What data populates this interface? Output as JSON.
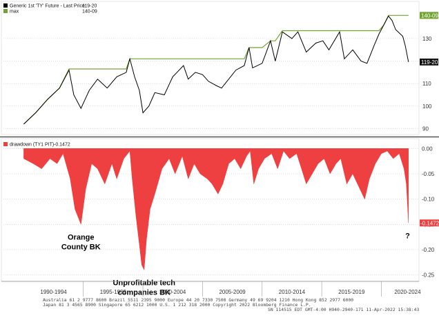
{
  "chart_data": [
    {
      "type": "line",
      "legend_placement": "top-left",
      "series": [
        {
          "name": "Generic 1st 'TY' Future - Last Price",
          "legend_value": "119-20",
          "color": "#000000"
        },
        {
          "name": "max",
          "legend_value": "140-09",
          "color": "#6fa32e"
        }
      ],
      "x": [
        1990.0,
        1991.0,
        1992.0,
        1993.0,
        1993.8,
        1994.2,
        1994.8,
        1995.5,
        1996.2,
        1997.0,
        1997.8,
        1998.6,
        1998.9,
        1999.3,
        1999.7,
        2000.0,
        2000.5,
        2001.0,
        2001.8,
        2002.5,
        2003.4,
        2003.8,
        2004.4,
        2005.0,
        2005.5,
        2006.2,
        2006.6,
        2007.2,
        2007.8,
        2008.5,
        2008.9,
        2009.2,
        2010.0,
        2010.7,
        2011.1,
        2011.7,
        2012.5,
        2013.0,
        2013.7,
        2014.5,
        2015.1,
        2015.6,
        2016.5,
        2016.9,
        2017.6,
        2018.3,
        2018.8,
        2019.4,
        2019.8,
        2020.2,
        2020.6,
        2020.9,
        2021.2,
        2021.8,
        2022.0,
        2022.28
      ],
      "ylim": [
        88,
        145
      ],
      "y_ticks": [
        90,
        100,
        110,
        120,
        130
      ],
      "price": [
        92,
        97,
        103,
        108,
        116,
        105,
        99,
        107,
        112,
        108,
        113,
        115,
        121,
        113,
        107,
        97,
        100,
        106,
        105,
        113,
        118,
        112,
        115,
        114,
        111,
        109,
        108,
        112,
        116,
        118,
        126,
        117,
        119,
        129,
        120,
        133,
        130,
        133,
        124,
        128,
        129,
        125,
        133,
        121,
        125,
        120,
        119,
        127,
        132,
        136,
        140,
        138,
        134,
        131,
        127,
        119.6
      ],
      "max": [
        92,
        97,
        103,
        108,
        116.5,
        116.5,
        116.5,
        116.5,
        116.5,
        116.5,
        116.5,
        116.5,
        121,
        121,
        121,
        121,
        121,
        121,
        121,
        121,
        121,
        121,
        121,
        121,
        121,
        121,
        121,
        121,
        121,
        121,
        126,
        126,
        126,
        129,
        129,
        133.5,
        133.5,
        133.5,
        133.5,
        133.5,
        133.5,
        133.5,
        133.5,
        133.5,
        133.5,
        133.5,
        133.5,
        133.5,
        133.5,
        136,
        140.3,
        140.3,
        140.3,
        140.3,
        140.3,
        140.3
      ],
      "current_value_label": "119-20",
      "max_value_label": "140-09"
    },
    {
      "type": "area",
      "legend_placement": "top-left",
      "series": [
        {
          "name": "drawdown (TY1 PIT)",
          "legend_value": "-0.1472",
          "color": "#ee4040"
        }
      ],
      "x": [
        1990.0,
        1990.8,
        1991.5,
        1992.2,
        1992.8,
        1993.3,
        1993.9,
        1994.3,
        1994.8,
        1995.2,
        1995.7,
        1996.2,
        1996.8,
        1997.4,
        1997.8,
        1998.4,
        1998.9,
        1999.1,
        1999.4,
        1999.7,
        1999.9,
        2000.1,
        2000.3,
        2000.6,
        2001.0,
        2001.6,
        2002.2,
        2002.7,
        2003.3,
        2003.8,
        2004.3,
        2004.8,
        2005.4,
        2005.8,
        2006.3,
        2006.7,
        2007.2,
        2007.7,
        2008.2,
        2008.7,
        2009.0,
        2009.3,
        2009.7,
        2010.2,
        2010.8,
        2011.3,
        2011.8,
        2012.3,
        2012.9,
        2013.3,
        2013.7,
        2014.2,
        2014.7,
        2015.2,
        2015.7,
        2016.2,
        2016.6,
        2017.1,
        2017.6,
        2018.2,
        2018.6,
        2019.0,
        2019.5,
        2020.0,
        2020.5,
        2021.0,
        2021.5,
        2021.9,
        2022.1,
        2022.28
      ],
      "ylim": [
        -0.26,
        0.01
      ],
      "y_ticks": [
        0.0,
        -0.05,
        -0.1,
        -0.15,
        -0.2,
        -0.25
      ],
      "y_tick_labels": [
        "0.00",
        "-0.05",
        "-0.10",
        "-0.15",
        "-0.20",
        "-0.25"
      ],
      "values": [
        -0.02,
        -0.03,
        -0.04,
        -0.02,
        -0.03,
        -0.01,
        -0.06,
        -0.12,
        -0.15,
        -0.08,
        -0.03,
        -0.04,
        -0.07,
        -0.03,
        -0.06,
        -0.02,
        -0.005,
        -0.06,
        -0.13,
        -0.19,
        -0.23,
        -0.24,
        -0.18,
        -0.12,
        -0.09,
        -0.04,
        -0.02,
        -0.05,
        -0.015,
        -0.06,
        -0.03,
        -0.05,
        -0.06,
        -0.07,
        -0.09,
        -0.07,
        -0.03,
        -0.02,
        -0.04,
        -0.015,
        -0.005,
        -0.07,
        -0.04,
        -0.02,
        -0.01,
        -0.04,
        -0.005,
        -0.02,
        -0.01,
        -0.04,
        -0.07,
        -0.05,
        -0.03,
        -0.02,
        -0.05,
        -0.03,
        -0.02,
        -0.07,
        -0.05,
        -0.08,
        -0.1,
        -0.06,
        -0.03,
        -0.01,
        -0.005,
        -0.02,
        -0.01,
        -0.04,
        -0.07,
        -0.1472
      ],
      "current_value_label": "-0.1472",
      "annotations": [
        {
          "text": [
            "Orange",
            "County BK"
          ],
          "x": 1994.8
        },
        {
          "text": [
            "Unprofitable tech",
            "companies BK"
          ],
          "x": 2000.1
        },
        {
          "text": [
            "?"
          ],
          "x": 2022.2
        }
      ]
    }
  ],
  "x_axis": {
    "range": [
      1988.3,
      2023.1
    ],
    "tick_labels": [
      "1990-1994",
      "1995-1999",
      "2000-2004",
      "2005-2009",
      "2010-2014",
      "2015-2019",
      "2020-2024"
    ],
    "tick_centers": [
      1992.5,
      1997.5,
      2002.5,
      2007.5,
      2012.5,
      2017.5,
      2022.2
    ],
    "separators": [
      1995,
      2000,
      2005,
      2010,
      2015,
      2020
    ]
  },
  "footer": {
    "line1": "Australia 61 2 9777 8600  Brazil 5511 2395 9000  Europe 44 20 7330 7500  Germany 49 69 9204 1210  Hong Kong 852 2977 6000",
    "line2": "Japan 81 3 4565 8900         Singapore 65 6212 1000          U.S. 1 212 318 2000          Copyright 2022 Bloomberg Finance L.P.",
    "line3": "SN 114515 EDT  GMT-4:00 H940-2940-171  11-Apr-2022  15:38:43"
  }
}
